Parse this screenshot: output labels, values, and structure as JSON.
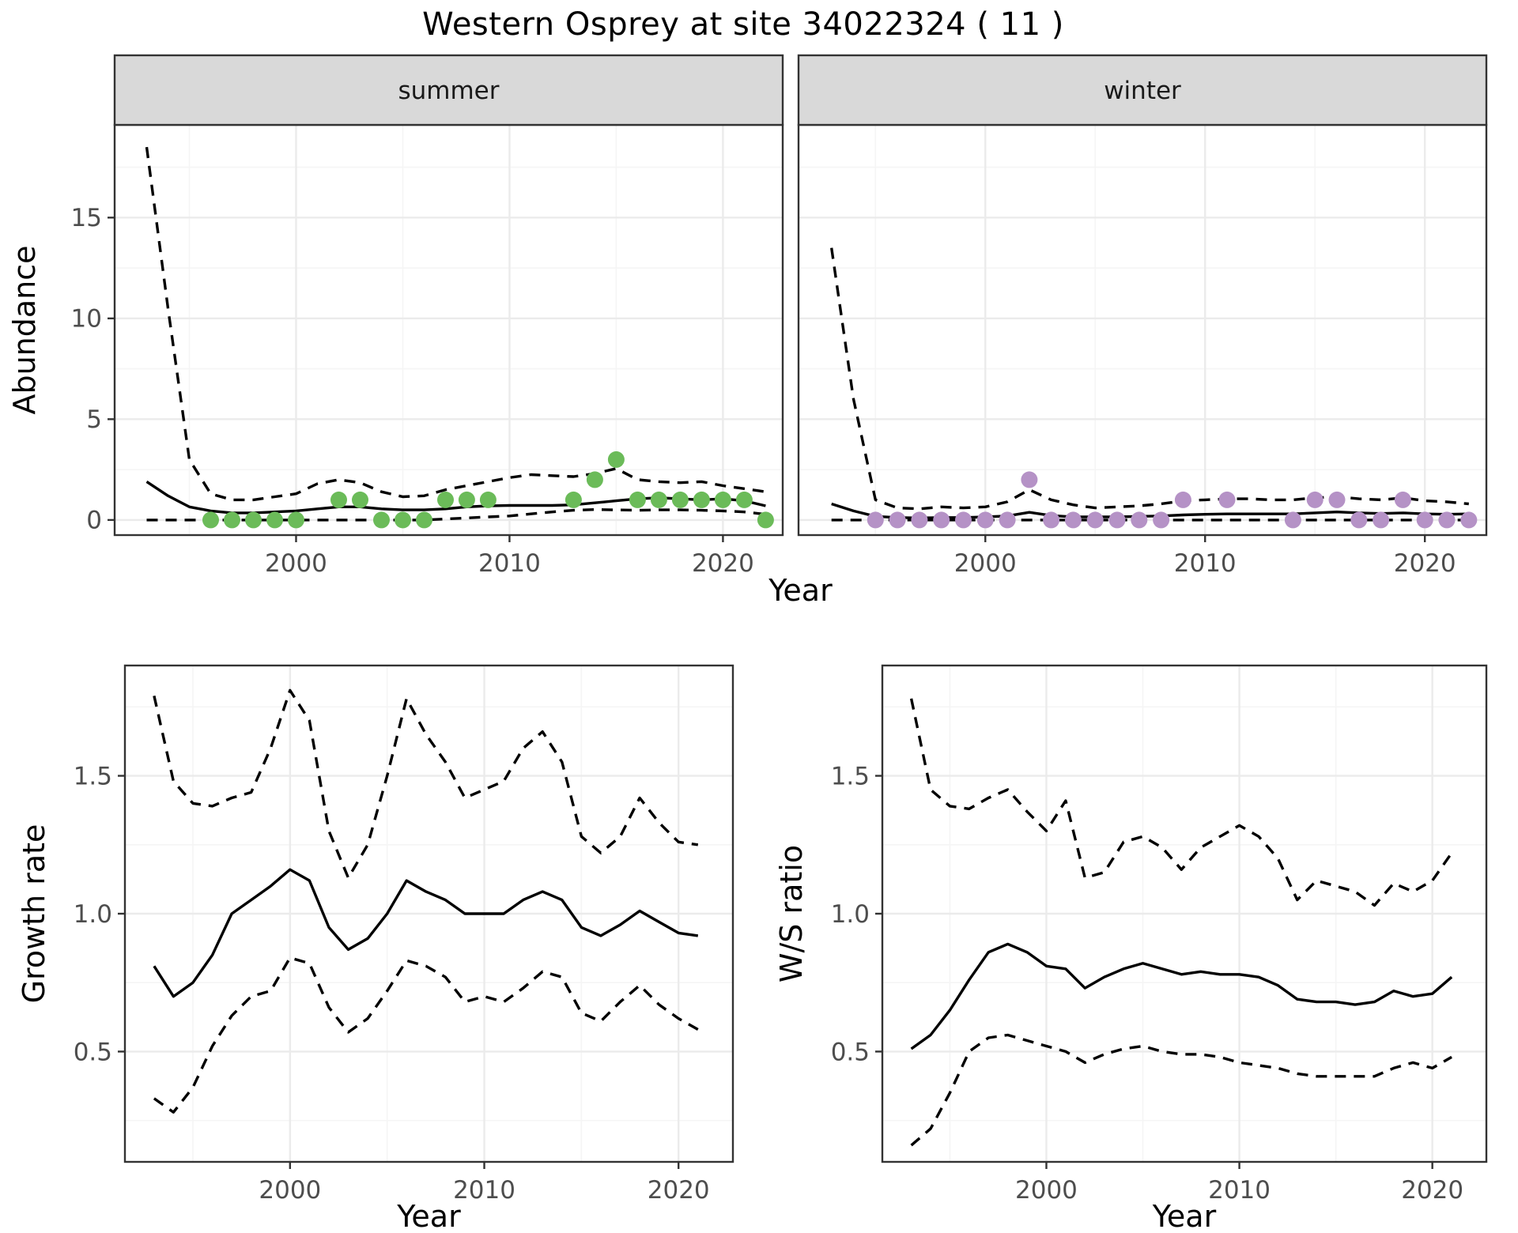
{
  "title": "Western Osprey at site 34022324 ( 11 )",
  "colors": {
    "summer_points": "#6BBB59",
    "winter_points": "#B592C6",
    "line": "#000000",
    "strip_bg": "#D9D9D9",
    "strip_text": "#1A1A1A",
    "panel_border": "#333333",
    "grid_major": "#EBEBEB",
    "grid_minor": "#F5F5F5",
    "tick_text": "#4D4D4D",
    "axis_title": "#000000"
  },
  "top_row": {
    "xlabel": "Year",
    "ylabel": "Abundance"
  },
  "bottom_row": {
    "xlabel": "Year"
  },
  "chart_data": [
    {
      "type": "line",
      "facet_label": "summer",
      "ylabel": "Abundance",
      "xlabel": "Year",
      "xlim": [
        1991.5,
        2022.8
      ],
      "ylim": [
        -0.75,
        19.6
      ],
      "xticks": [
        2000,
        2010,
        2020
      ],
      "xticklabels": [
        "2000",
        "2010",
        "2020"
      ],
      "xminor": [
        1995,
        2005,
        2015
      ],
      "yticks": [
        0,
        5,
        10,
        15
      ],
      "yticklabels": [
        "0",
        "5",
        "10",
        "15"
      ],
      "yminor": [
        2.5,
        7.5,
        12.5,
        17.5
      ],
      "show_ylab": true,
      "x": [
        1993,
        1994,
        1995,
        1996,
        1997,
        1998,
        1999,
        2000,
        2001,
        2002,
        2003,
        2004,
        2005,
        2006,
        2007,
        2008,
        2009,
        2010,
        2011,
        2012,
        2013,
        2014,
        2015,
        2016,
        2017,
        2018,
        2019,
        2020,
        2021,
        2022
      ],
      "series": [
        {
          "name": "median-fit",
          "style": "solid",
          "values": [
            1.9,
            1.2,
            0.65,
            0.45,
            0.35,
            0.35,
            0.4,
            0.45,
            0.55,
            0.65,
            0.65,
            0.55,
            0.5,
            0.5,
            0.55,
            0.65,
            0.7,
            0.72,
            0.72,
            0.72,
            0.75,
            0.85,
            0.95,
            1.05,
            1.1,
            1.05,
            1.0,
            1.05,
            0.95,
            0.7
          ]
        },
        {
          "name": "upper-ci",
          "style": "dashed",
          "values": [
            18.5,
            10.5,
            3.0,
            1.3,
            1.0,
            1.0,
            1.15,
            1.3,
            1.8,
            2.0,
            1.85,
            1.4,
            1.15,
            1.2,
            1.5,
            1.7,
            1.9,
            2.1,
            2.25,
            2.2,
            2.15,
            2.3,
            2.55,
            2.0,
            1.9,
            1.85,
            1.9,
            1.7,
            1.55,
            1.4
          ]
        },
        {
          "name": "lower-ci",
          "style": "dashed",
          "values": [
            0,
            0,
            0,
            0,
            0,
            0,
            0,
            0,
            0,
            0,
            0,
            0,
            0,
            0,
            0.05,
            0.1,
            0.15,
            0.2,
            0.3,
            0.4,
            0.48,
            0.52,
            0.5,
            0.48,
            0.5,
            0.5,
            0.48,
            0.45,
            0.4,
            0.28
          ]
        }
      ],
      "points": {
        "name": "summer-observations",
        "color_key": "summer_points",
        "x": [
          1996,
          1997,
          1998,
          1999,
          2000,
          2002,
          2003,
          2004,
          2005,
          2006,
          2007,
          2008,
          2009,
          2013,
          2014,
          2015,
          2016,
          2017,
          2018,
          2019,
          2020,
          2021,
          2022
        ],
        "y": [
          0,
          0,
          0,
          0,
          0,
          1,
          1,
          0,
          0,
          0,
          1,
          1,
          1,
          1,
          2,
          3,
          1,
          1,
          1,
          1,
          1,
          1,
          0
        ]
      }
    },
    {
      "type": "line",
      "facet_label": "winter",
      "ylabel": "Abundance",
      "xlabel": "Year",
      "xlim": [
        1991.5,
        2022.8
      ],
      "ylim": [
        -0.75,
        19.6
      ],
      "xticks": [
        2000,
        2010,
        2020
      ],
      "xticklabels": [
        "2000",
        "2010",
        "2020"
      ],
      "xminor": [
        1995,
        2005,
        2015
      ],
      "yticks": [
        0,
        5,
        10,
        15
      ],
      "yticklabels": [
        "0",
        "5",
        "10",
        "15"
      ],
      "yminor": [
        2.5,
        7.5,
        12.5,
        17.5
      ],
      "show_ylab": false,
      "x": [
        1993,
        1994,
        1995,
        1996,
        1997,
        1998,
        1999,
        2000,
        2001,
        2002,
        2003,
        2004,
        2005,
        2006,
        2007,
        2008,
        2009,
        2010,
        2011,
        2012,
        2013,
        2014,
        2015,
        2016,
        2017,
        2018,
        2019,
        2020,
        2021,
        2022
      ],
      "series": [
        {
          "name": "median-fit",
          "style": "solid",
          "values": [
            0.8,
            0.45,
            0.18,
            0.12,
            0.1,
            0.12,
            0.12,
            0.15,
            0.2,
            0.38,
            0.22,
            0.15,
            0.15,
            0.15,
            0.18,
            0.2,
            0.25,
            0.28,
            0.3,
            0.3,
            0.3,
            0.3,
            0.35,
            0.4,
            0.35,
            0.32,
            0.35,
            0.3,
            0.28,
            0.3
          ]
        },
        {
          "name": "upper-ci",
          "style": "dashed",
          "values": [
            13.5,
            6.0,
            1.0,
            0.6,
            0.55,
            0.65,
            0.6,
            0.65,
            0.9,
            1.5,
            1.0,
            0.75,
            0.6,
            0.65,
            0.7,
            0.8,
            0.95,
            1.0,
            1.05,
            1.05,
            1.0,
            1.0,
            1.1,
            1.15,
            1.05,
            1.0,
            1.1,
            0.95,
            0.9,
            0.8
          ]
        },
        {
          "name": "lower-ci",
          "style": "dashed",
          "values": [
            0,
            0,
            0,
            0,
            0,
            0,
            0,
            0,
            0,
            0,
            0,
            0,
            0,
            0,
            0,
            0,
            0,
            0,
            0,
            0,
            0,
            0,
            0,
            0,
            0,
            0,
            0,
            0,
            0,
            0
          ]
        }
      ],
      "points": {
        "name": "winter-observations",
        "color_key": "winter_points",
        "x": [
          1995,
          1996,
          1997,
          1998,
          1999,
          2000,
          2001,
          2002,
          2003,
          2004,
          2005,
          2006,
          2007,
          2008,
          2009,
          2011,
          2014,
          2015,
          2016,
          2017,
          2018,
          2019,
          2020,
          2021,
          2022
        ],
        "y": [
          0,
          0,
          0,
          0,
          0,
          0,
          0,
          2,
          0,
          0,
          0,
          0,
          0,
          0,
          1,
          1,
          0,
          1,
          1,
          0,
          0,
          1,
          0,
          0,
          0
        ]
      }
    },
    {
      "type": "line",
      "facet_label": null,
      "ylabel": "Growth rate",
      "xlabel": "Year",
      "xlim": [
        1991.5,
        2022.8
      ],
      "ylim": [
        0.1,
        1.9
      ],
      "xticks": [
        2000,
        2010,
        2020
      ],
      "xticklabels": [
        "2000",
        "2010",
        "2020"
      ],
      "xminor": [
        1995,
        2005,
        2015
      ],
      "yticks": [
        0.5,
        1.0,
        1.5
      ],
      "yticklabels": [
        "0.5",
        "1.0",
        "1.5"
      ],
      "yminor": [
        0.25,
        0.75,
        1.25,
        1.75
      ],
      "show_ylab": true,
      "x": [
        1993,
        1994,
        1995,
        1996,
        1997,
        1998,
        1999,
        2000,
        2001,
        2002,
        2003,
        2004,
        2005,
        2006,
        2007,
        2008,
        2009,
        2010,
        2011,
        2012,
        2013,
        2014,
        2015,
        2016,
        2017,
        2018,
        2019,
        2020,
        2021
      ],
      "series": [
        {
          "name": "median-fit",
          "style": "solid",
          "values": [
            0.81,
            0.7,
            0.75,
            0.85,
            1.0,
            1.05,
            1.1,
            1.16,
            1.12,
            0.95,
            0.87,
            0.91,
            1.0,
            1.12,
            1.08,
            1.05,
            1.0,
            1.0,
            1.0,
            1.05,
            1.08,
            1.05,
            0.95,
            0.92,
            0.96,
            1.01,
            0.97,
            0.93,
            0.92
          ]
        },
        {
          "name": "upper-ci",
          "style": "dashed",
          "values": [
            1.79,
            1.48,
            1.4,
            1.39,
            1.42,
            1.44,
            1.6,
            1.81,
            1.7,
            1.3,
            1.13,
            1.25,
            1.5,
            1.78,
            1.65,
            1.55,
            1.42,
            1.45,
            1.48,
            1.6,
            1.66,
            1.55,
            1.28,
            1.22,
            1.28,
            1.42,
            1.33,
            1.26,
            1.25
          ]
        },
        {
          "name": "lower-ci",
          "style": "dashed",
          "values": [
            0.33,
            0.28,
            0.37,
            0.52,
            0.63,
            0.7,
            0.72,
            0.84,
            0.82,
            0.66,
            0.57,
            0.62,
            0.72,
            0.83,
            0.81,
            0.77,
            0.68,
            0.7,
            0.68,
            0.73,
            0.79,
            0.77,
            0.64,
            0.61,
            0.68,
            0.74,
            0.67,
            0.62,
            0.58
          ]
        }
      ],
      "points": null
    },
    {
      "type": "line",
      "facet_label": null,
      "ylabel": "W/S ratio",
      "xlabel": "Year",
      "xlim": [
        1991.5,
        2022.8
      ],
      "ylim": [
        0.1,
        1.9
      ],
      "xticks": [
        2000,
        2010,
        2020
      ],
      "xticklabels": [
        "2000",
        "2010",
        "2020"
      ],
      "xminor": [
        1995,
        2005,
        2015
      ],
      "yticks": [
        0.5,
        1.0,
        1.5
      ],
      "yticklabels": [
        "0.5",
        "1.0",
        "1.5"
      ],
      "yminor": [
        0.25,
        0.75,
        1.25,
        1.75
      ],
      "show_ylab": true,
      "x": [
        1993,
        1994,
        1995,
        1996,
        1997,
        1998,
        1999,
        2000,
        2001,
        2002,
        2003,
        2004,
        2005,
        2006,
        2007,
        2008,
        2009,
        2010,
        2011,
        2012,
        2013,
        2014,
        2015,
        2016,
        2017,
        2018,
        2019,
        2020,
        2021
      ],
      "series": [
        {
          "name": "median-fit",
          "style": "solid",
          "values": [
            0.51,
            0.56,
            0.65,
            0.76,
            0.86,
            0.89,
            0.86,
            0.81,
            0.8,
            0.73,
            0.77,
            0.8,
            0.82,
            0.8,
            0.78,
            0.79,
            0.78,
            0.78,
            0.77,
            0.74,
            0.69,
            0.68,
            0.68,
            0.67,
            0.68,
            0.72,
            0.7,
            0.71,
            0.77
          ]
        },
        {
          "name": "upper-ci",
          "style": "dashed",
          "values": [
            1.78,
            1.45,
            1.39,
            1.38,
            1.42,
            1.45,
            1.37,
            1.3,
            1.41,
            1.13,
            1.15,
            1.26,
            1.28,
            1.24,
            1.16,
            1.24,
            1.28,
            1.32,
            1.28,
            1.2,
            1.05,
            1.12,
            1.1,
            1.08,
            1.03,
            1.11,
            1.08,
            1.12,
            1.22
          ]
        },
        {
          "name": "lower-ci",
          "style": "dashed",
          "values": [
            0.16,
            0.22,
            0.35,
            0.5,
            0.55,
            0.56,
            0.54,
            0.52,
            0.5,
            0.46,
            0.49,
            0.51,
            0.52,
            0.5,
            0.49,
            0.49,
            0.48,
            0.46,
            0.45,
            0.44,
            0.42,
            0.41,
            0.41,
            0.41,
            0.41,
            0.44,
            0.46,
            0.44,
            0.48
          ]
        }
      ],
      "points": null
    }
  ]
}
